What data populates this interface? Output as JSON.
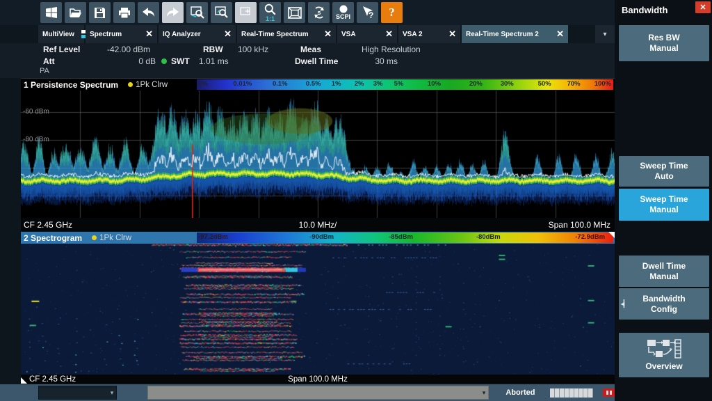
{
  "glyphs": {
    "close": "✕",
    "dropdown": "▾",
    "up_dn": "▾"
  },
  "toolbar": {
    "icons": [
      "windows",
      "open-file",
      "save",
      "print",
      "undo",
      "redo",
      "zoom-trace",
      "zoom-area",
      "zoom-off",
      "zoom-one-to-one",
      "display-frame",
      "sequencer",
      "scpi-remote",
      "context-help",
      "help",
      "screenshot-camera"
    ],
    "zoom_1to1_label": "1:1",
    "sequencer_label": "s",
    "scpi_label": "SCPI",
    "context_help_label": "?",
    "help_label": "?"
  },
  "tabs": [
    {
      "label": "MultiView",
      "closable": false,
      "active": false
    },
    {
      "label": "Spectrum",
      "closable": true,
      "active": false
    },
    {
      "label": "IQ Analyzer",
      "closable": true,
      "active": false
    },
    {
      "label": "Real-Time Spectrum",
      "closable": true,
      "active": false
    },
    {
      "label": "VSA",
      "closable": true,
      "active": false
    },
    {
      "label": "VSA 2",
      "closable": true,
      "active": false
    },
    {
      "label": "Real-Time Spectrum 2",
      "closable": true,
      "active": true
    }
  ],
  "settings": {
    "ref_level_label": "Ref Level",
    "ref_level": "-42.00 dBm",
    "rbw_label": "RBW",
    "rbw": "100 kHz",
    "meas_label": "Meas",
    "meas": "High Resolution",
    "att_label": "Att",
    "att": "0 dB",
    "swt_label": "SWT",
    "swt": "1.01 ms",
    "dwell_label": "Dwell Time",
    "dwell": "30 ms",
    "pa_label": "PA"
  },
  "window1": {
    "index": "1",
    "title": "Persistence Spectrum",
    "trace_label": "1Pk Clrw",
    "colorbar_labels": [
      "0%",
      "0.01%",
      "0.1%",
      "0.5%",
      "1%",
      "2%",
      "3%",
      "5%",
      "10%",
      "20%",
      "30%",
      "50%",
      "70%",
      "100%"
    ],
    "y_labels": [
      "-60 dBm",
      "-80 dBm"
    ],
    "footer_cf": "CF 2.45 GHz",
    "footer_scale": "10.0 MHz/",
    "footer_span": "Span 100.0 MHz"
  },
  "window2": {
    "index": "2",
    "title": "Spectrogram",
    "trace_label": "1Pk Clrw",
    "colorbar_labels": [
      "-97.2dBm",
      "-90dBm",
      "-85dBm",
      "-80dBm",
      "-72.9dBm"
    ],
    "footer_cf": "CF 2.45 GHz",
    "footer_span": "Span 100.0 MHz"
  },
  "sidebar": {
    "title": "Bandwidth",
    "buttons": [
      {
        "lines": [
          "Res BW",
          "Manual"
        ],
        "active": false
      },
      {
        "lines": [
          "Sweep Time",
          "Auto"
        ],
        "active": false
      },
      {
        "lines": [
          "Sweep Time",
          "Manual"
        ],
        "active": true
      },
      {
        "lines": [
          "Dwell Time",
          "Manual"
        ],
        "active": false
      },
      {
        "lines": [
          "Bandwidth",
          "Config"
        ],
        "active": false
      },
      {
        "lines": [
          "Overview"
        ],
        "active": false
      }
    ]
  },
  "statusbar": {
    "status": "Aborted"
  },
  "colors": {
    "accent_blue": "#29a5dc",
    "softkey_gray": "#4c6b7c",
    "help_orange": "#e87d0e",
    "trace_yellow": "#e8d21b",
    "window2_header": "#2e76ad"
  }
}
